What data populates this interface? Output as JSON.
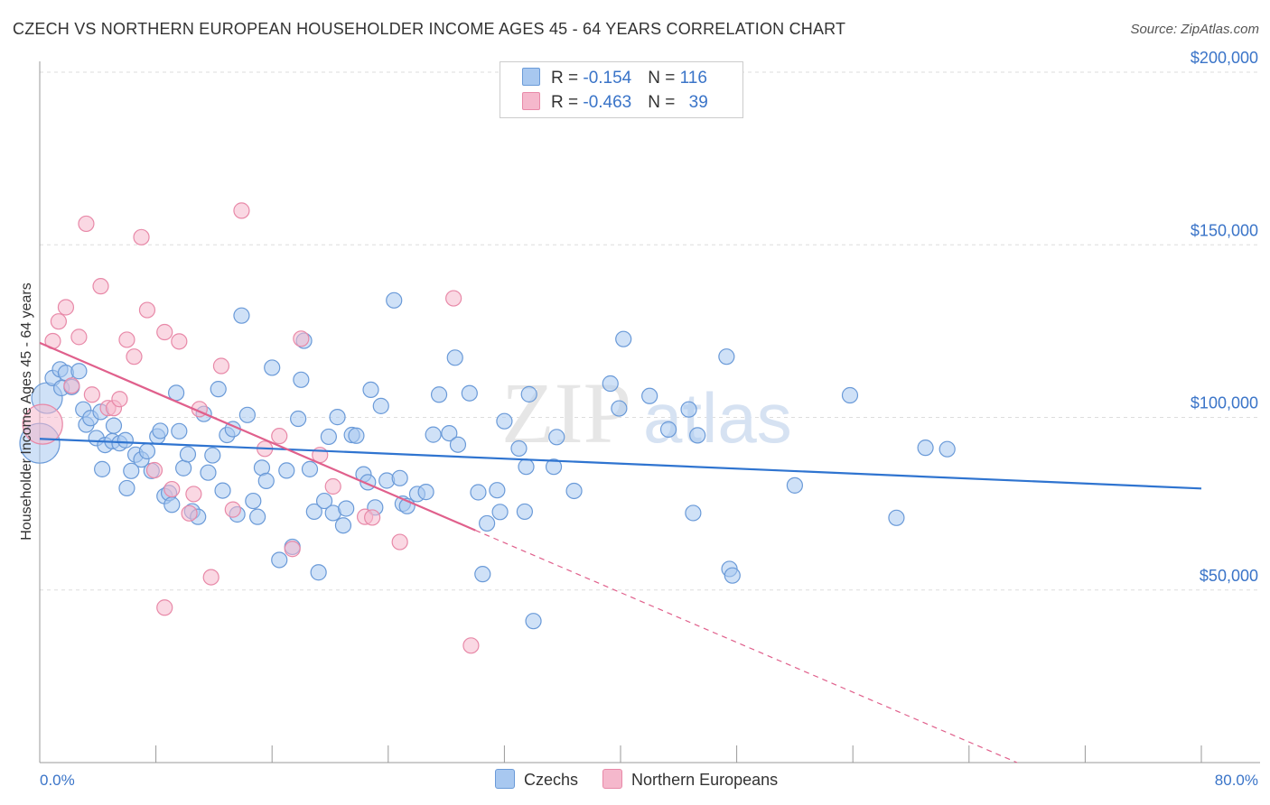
{
  "title": "CZECH VS NORTHERN EUROPEAN HOUSEHOLDER INCOME AGES 45 - 64 YEARS CORRELATION CHART",
  "source": "Source: ZipAtlas.com",
  "watermark": {
    "zip": "ZIP",
    "atlas": "atlas"
  },
  "legend": {
    "rows": [
      {
        "r_label": "R = ",
        "r_value": "-0.154",
        "n_label": "N = ",
        "n_value": "116"
      },
      {
        "r_label": "R = ",
        "r_value": "-0.463",
        "n_label": "N = ",
        "n_value": "39"
      }
    ]
  },
  "bottom_legend": [
    "Czechs",
    "Northern Europeans"
  ],
  "colors": {
    "blue_fill": "#a8c8f0",
    "blue_stroke": "#6a9ad8",
    "blue_line": "#2f74d0",
    "pink_fill": "#f5b8cc",
    "pink_stroke": "#e889a8",
    "pink_line": "#e0608c",
    "tick_text": "#3a74c8",
    "grid": "#dddddd"
  },
  "chart_data": {
    "type": "scatter",
    "title": "CZECH VS NORTHERN EUROPEAN HOUSEHOLDER INCOME AGES 45 - 64 YEARS CORRELATION CHART",
    "xlabel": "",
    "ylabel": "Householder Income Ages 45 - 64 years",
    "xlim": [
      0,
      80
    ],
    "ylim": [
      0,
      200000
    ],
    "x_tick_labels": [
      "0.0%",
      "80.0%"
    ],
    "y_ticks": [
      50000,
      100000,
      150000,
      200000
    ],
    "y_tick_labels": [
      "$50,000",
      "$100,000",
      "$150,000",
      "$200,000"
    ],
    "grid": true,
    "series": [
      {
        "name": "Czechs",
        "r": -0.154,
        "n": 116,
        "trend": {
          "x0": 0,
          "y0": 93800,
          "x1": 80,
          "y1": 79400
        },
        "points": [
          [
            0.0,
            92500
          ],
          [
            0.5,
            105600
          ],
          [
            0.9,
            111400
          ],
          [
            1.5,
            108500
          ],
          [
            1.4,
            113900
          ],
          [
            1.8,
            112900
          ],
          [
            2.2,
            108800
          ],
          [
            2.7,
            113400
          ],
          [
            3.0,
            102300
          ],
          [
            3.2,
            97900
          ],
          [
            3.5,
            99800
          ],
          [
            3.9,
            94000
          ],
          [
            4.2,
            101600
          ],
          [
            4.5,
            92000
          ],
          [
            4.3,
            85000
          ],
          [
            5.0,
            93100
          ],
          [
            5.1,
            97600
          ],
          [
            5.5,
            92500
          ],
          [
            5.9,
            93400
          ],
          [
            6.0,
            79500
          ],
          [
            6.3,
            84500
          ],
          [
            6.6,
            89200
          ],
          [
            7.0,
            87800
          ],
          [
            7.4,
            90200
          ],
          [
            7.7,
            84500
          ],
          [
            8.1,
            94500
          ],
          [
            8.3,
            96100
          ],
          [
            8.6,
            77200
          ],
          [
            8.9,
            78100
          ],
          [
            9.1,
            74700
          ],
          [
            9.4,
            107100
          ],
          [
            9.6,
            96000
          ],
          [
            9.9,
            85300
          ],
          [
            10.2,
            89300
          ],
          [
            10.5,
            72800
          ],
          [
            10.9,
            71200
          ],
          [
            11.3,
            101000
          ],
          [
            11.6,
            84000
          ],
          [
            11.9,
            89000
          ],
          [
            12.3,
            108200
          ],
          [
            12.6,
            78800
          ],
          [
            12.9,
            94900
          ],
          [
            13.3,
            96600
          ],
          [
            13.6,
            71900
          ],
          [
            13.9,
            129500
          ],
          [
            14.3,
            100700
          ],
          [
            14.7,
            75800
          ],
          [
            15.0,
            71200
          ],
          [
            15.3,
            85400
          ],
          [
            15.6,
            81600
          ],
          [
            16.0,
            114400
          ],
          [
            16.5,
            58700
          ],
          [
            17.0,
            84600
          ],
          [
            17.4,
            62500
          ],
          [
            17.8,
            99600
          ],
          [
            18.0,
            110900
          ],
          [
            18.2,
            122200
          ],
          [
            18.6,
            85000
          ],
          [
            18.9,
            72700
          ],
          [
            19.2,
            55100
          ],
          [
            19.6,
            75800
          ],
          [
            19.9,
            94400
          ],
          [
            20.2,
            72300
          ],
          [
            20.5,
            100100
          ],
          [
            20.9,
            68700
          ],
          [
            21.1,
            73600
          ],
          [
            21.5,
            94900
          ],
          [
            21.8,
            94700
          ],
          [
            22.3,
            83500
          ],
          [
            22.6,
            81200
          ],
          [
            22.8,
            108000
          ],
          [
            23.1,
            73900
          ],
          [
            23.5,
            103300
          ],
          [
            23.9,
            81700
          ],
          [
            24.4,
            133900
          ],
          [
            24.8,
            82400
          ],
          [
            25.0,
            75000
          ],
          [
            25.3,
            74300
          ],
          [
            26.0,
            77800
          ],
          [
            26.6,
            78400
          ],
          [
            27.1,
            95000
          ],
          [
            27.5,
            106600
          ],
          [
            28.2,
            95400
          ],
          [
            28.6,
            117300
          ],
          [
            28.8,
            92100
          ],
          [
            29.6,
            107000
          ],
          [
            30.2,
            78300
          ],
          [
            30.5,
            54600
          ],
          [
            30.8,
            69300
          ],
          [
            31.5,
            78900
          ],
          [
            31.7,
            72600
          ],
          [
            32.0,
            98900
          ],
          [
            33.0,
            91000
          ],
          [
            33.4,
            72700
          ],
          [
            33.5,
            85700
          ],
          [
            33.7,
            106700
          ],
          [
            34.0,
            41000
          ],
          [
            35.4,
            85700
          ],
          [
            35.6,
            94300
          ],
          [
            36.8,
            78700
          ],
          [
            39.3,
            109800
          ],
          [
            39.9,
            102600
          ],
          [
            40.2,
            122700
          ],
          [
            42.0,
            106200
          ],
          [
            43.3,
            96500
          ],
          [
            44.7,
            102300
          ],
          [
            45.0,
            72300
          ],
          [
            45.3,
            94800
          ],
          [
            47.3,
            117600
          ],
          [
            47.5,
            56100
          ],
          [
            47.7,
            54200
          ],
          [
            52.0,
            80300
          ],
          [
            55.8,
            106400
          ],
          [
            59.0,
            70900
          ],
          [
            61.0,
            91200
          ],
          [
            62.5,
            90800
          ]
        ]
      },
      {
        "name": "Northern Europeans",
        "r": -0.463,
        "n": 39,
        "trend": {
          "x0": 0,
          "y0": 121600,
          "x1": 30,
          "y1": 67300,
          "dash_x1": 80,
          "dash_y1": -22900
        },
        "points": [
          [
            0.2,
            98000
          ],
          [
            0.9,
            122100
          ],
          [
            1.3,
            127800
          ],
          [
            1.8,
            131900
          ],
          [
            2.2,
            109200
          ],
          [
            2.7,
            123300
          ],
          [
            3.2,
            156100
          ],
          [
            3.6,
            106600
          ],
          [
            4.2,
            138000
          ],
          [
            4.7,
            102700
          ],
          [
            5.1,
            102700
          ],
          [
            5.5,
            105300
          ],
          [
            6.0,
            122500
          ],
          [
            6.5,
            117600
          ],
          [
            7.0,
            152200
          ],
          [
            7.4,
            131100
          ],
          [
            7.9,
            84700
          ],
          [
            8.6,
            124700
          ],
          [
            9.1,
            79200
          ],
          [
            9.6,
            122000
          ],
          [
            10.3,
            72200
          ],
          [
            10.6,
            77800
          ],
          [
            11.0,
            102400
          ],
          [
            11.8,
            53700
          ],
          [
            12.5,
            114900
          ],
          [
            13.3,
            73300
          ],
          [
            13.9,
            159900
          ],
          [
            15.5,
            90900
          ],
          [
            16.5,
            94600
          ],
          [
            17.4,
            61900
          ],
          [
            18.0,
            122800
          ],
          [
            19.3,
            89100
          ],
          [
            20.2,
            80000
          ],
          [
            22.4,
            71200
          ],
          [
            22.9,
            71000
          ],
          [
            24.8,
            63900
          ],
          [
            28.5,
            134500
          ],
          [
            29.7,
            33900
          ],
          [
            8.6,
            44900
          ]
        ]
      }
    ]
  }
}
